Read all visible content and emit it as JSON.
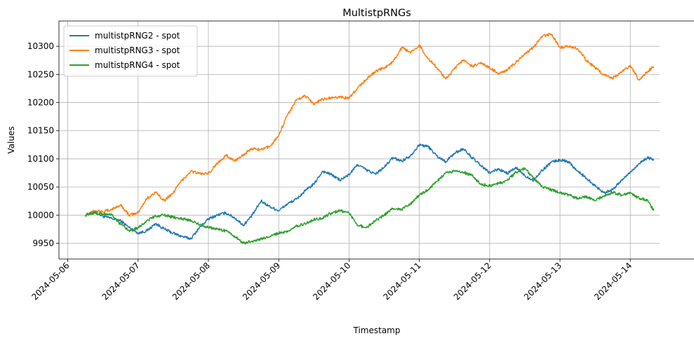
{
  "chart_data": {
    "type": "line",
    "title": "MultistpRNGs",
    "xlabel": "Timestamp",
    "ylabel": "Values",
    "x_ticks": [
      "2024-05-06",
      "2024-05-07",
      "2024-05-08",
      "2024-05-09",
      "2024-05-10",
      "2024-05-11",
      "2024-05-12",
      "2024-05-13",
      "2024-05-14"
    ],
    "y_ticks": [
      9950,
      10000,
      10050,
      10100,
      10150,
      10200,
      10250,
      10300
    ],
    "xlim": [
      "2024-05-05 21:00",
      "2024-05-14 10:00"
    ],
    "ylim": [
      9922,
      10345
    ],
    "grid": true,
    "legend_position": "top-left",
    "series": [
      {
        "name": "multistpRNG2 - spot",
        "color": "#1f77b4",
        "points": [
          [
            "2024-05-06 06:00",
            10000
          ],
          [
            "2024-05-06 09:00",
            10006
          ],
          [
            "2024-05-06 12:00",
            9998
          ],
          [
            "2024-05-06 15:00",
            9994
          ],
          [
            "2024-05-06 18:00",
            9990
          ],
          [
            "2024-05-06 21:00",
            9978
          ],
          [
            "2024-05-07 00:00",
            9968
          ],
          [
            "2024-05-07 03:00",
            9972
          ],
          [
            "2024-05-07 06:00",
            9985
          ],
          [
            "2024-05-07 09:00",
            9975
          ],
          [
            "2024-05-07 12:00",
            9968
          ],
          [
            "2024-05-07 15:00",
            9962
          ],
          [
            "2024-05-07 18:00",
            9958
          ],
          [
            "2024-05-07 21:00",
            9978
          ],
          [
            "2024-05-08 00:00",
            9993
          ],
          [
            "2024-05-08 03:00",
            10000
          ],
          [
            "2024-05-08 06:00",
            10004
          ],
          [
            "2024-05-08 09:00",
            9995
          ],
          [
            "2024-05-08 12:00",
            9982
          ],
          [
            "2024-05-08 15:00",
            10000
          ],
          [
            "2024-05-08 18:00",
            10025
          ],
          [
            "2024-05-08 21:00",
            10015
          ],
          [
            "2024-05-09 00:00",
            10008
          ],
          [
            "2024-05-09 03:00",
            10020
          ],
          [
            "2024-05-09 06:00",
            10028
          ],
          [
            "2024-05-09 09:00",
            10043
          ],
          [
            "2024-05-09 12:00",
            10055
          ],
          [
            "2024-05-09 15:00",
            10078
          ],
          [
            "2024-05-09 18:00",
            10072
          ],
          [
            "2024-05-09 21:00",
            10062
          ],
          [
            "2024-05-10 00:00",
            10072
          ],
          [
            "2024-05-10 03:00",
            10090
          ],
          [
            "2024-05-10 06:00",
            10080
          ],
          [
            "2024-05-10 09:00",
            10073
          ],
          [
            "2024-05-10 12:00",
            10085
          ],
          [
            "2024-05-10 15:00",
            10102
          ],
          [
            "2024-05-10 18:00",
            10096
          ],
          [
            "2024-05-10 21:00",
            10106
          ],
          [
            "2024-05-11 00:00",
            10125
          ],
          [
            "2024-05-11 03:00",
            10122
          ],
          [
            "2024-05-11 06:00",
            10105
          ],
          [
            "2024-05-11 09:00",
            10095
          ],
          [
            "2024-05-11 12:00",
            10110
          ],
          [
            "2024-05-11 15:00",
            10118
          ],
          [
            "2024-05-11 18:00",
            10102
          ],
          [
            "2024-05-11 21:00",
            10088
          ],
          [
            "2024-05-12 00:00",
            10075
          ],
          [
            "2024-05-12 03:00",
            10082
          ],
          [
            "2024-05-12 06:00",
            10074
          ],
          [
            "2024-05-12 09:00",
            10084
          ],
          [
            "2024-05-12 12:00",
            10070
          ],
          [
            "2024-05-12 15:00",
            10062
          ],
          [
            "2024-05-12 18:00",
            10080
          ],
          [
            "2024-05-12 21:00",
            10094
          ],
          [
            "2024-05-13 00:00",
            10098
          ],
          [
            "2024-05-13 03:00",
            10095
          ],
          [
            "2024-05-13 06:00",
            10078
          ],
          [
            "2024-05-13 09:00",
            10066
          ],
          [
            "2024-05-13 12:00",
            10052
          ],
          [
            "2024-05-13 15:00",
            10040
          ],
          [
            "2024-05-13 18:00",
            10045
          ],
          [
            "2024-05-13 21:00",
            10062
          ],
          [
            "2024-05-14 00:00",
            10076
          ],
          [
            "2024-05-14 03:00",
            10092
          ],
          [
            "2024-05-14 06:00",
            10102
          ],
          [
            "2024-05-14 08:00",
            10098
          ]
        ]
      },
      {
        "name": "multistpRNG3 - spot",
        "color": "#ff7f0e",
        "points": [
          [
            "2024-05-06 06:00",
            10000
          ],
          [
            "2024-05-06 09:00",
            10008
          ],
          [
            "2024-05-06 12:00",
            10006
          ],
          [
            "2024-05-06 15:00",
            10010
          ],
          [
            "2024-05-06 18:00",
            10018
          ],
          [
            "2024-05-06 21:00",
            10000
          ],
          [
            "2024-05-07 00:00",
            10004
          ],
          [
            "2024-05-07 03:00",
            10030
          ],
          [
            "2024-05-07 06:00",
            10040
          ],
          [
            "2024-05-07 09:00",
            10026
          ],
          [
            "2024-05-07 12:00",
            10040
          ],
          [
            "2024-05-07 15:00",
            10062
          ],
          [
            "2024-05-07 18:00",
            10078
          ],
          [
            "2024-05-07 21:00",
            10074
          ],
          [
            "2024-05-08 00:00",
            10073
          ],
          [
            "2024-05-08 03:00",
            10092
          ],
          [
            "2024-05-08 06:00",
            10106
          ],
          [
            "2024-05-08 09:00",
            10096
          ],
          [
            "2024-05-08 12:00",
            10108
          ],
          [
            "2024-05-08 15:00",
            10118
          ],
          [
            "2024-05-08 18:00",
            10116
          ],
          [
            "2024-05-08 21:00",
            10122
          ],
          [
            "2024-05-09 00:00",
            10142
          ],
          [
            "2024-05-09 03:00",
            10178
          ],
          [
            "2024-05-09 06:00",
            10204
          ],
          [
            "2024-05-09 09:00",
            10212
          ],
          [
            "2024-05-09 12:00",
            10198
          ],
          [
            "2024-05-09 15:00",
            10206
          ],
          [
            "2024-05-09 18:00",
            10208
          ],
          [
            "2024-05-09 21:00",
            10210
          ],
          [
            "2024-05-10 00:00",
            10208
          ],
          [
            "2024-05-10 03:00",
            10226
          ],
          [
            "2024-05-10 06:00",
            10242
          ],
          [
            "2024-05-10 09:00",
            10255
          ],
          [
            "2024-05-10 12:00",
            10262
          ],
          [
            "2024-05-10 15:00",
            10272
          ],
          [
            "2024-05-10 18:00",
            10298
          ],
          [
            "2024-05-10 21:00",
            10288
          ],
          [
            "2024-05-11 00:00",
            10302
          ],
          [
            "2024-05-11 03:00",
            10278
          ],
          [
            "2024-05-11 06:00",
            10262
          ],
          [
            "2024-05-11 09:00",
            10242
          ],
          [
            "2024-05-11 12:00",
            10260
          ],
          [
            "2024-05-11 15:00",
            10276
          ],
          [
            "2024-05-11 18:00",
            10264
          ],
          [
            "2024-05-11 21:00",
            10270
          ],
          [
            "2024-05-12 00:00",
            10262
          ],
          [
            "2024-05-12 03:00",
            10252
          ],
          [
            "2024-05-12 06:00",
            10258
          ],
          [
            "2024-05-12 09:00",
            10272
          ],
          [
            "2024-05-12 12:00",
            10286
          ],
          [
            "2024-05-12 15:00",
            10298
          ],
          [
            "2024-05-12 18:00",
            10318
          ],
          [
            "2024-05-12 21:00",
            10322
          ],
          [
            "2024-05-13 00:00",
            10298
          ],
          [
            "2024-05-13 03:00",
            10300
          ],
          [
            "2024-05-13 06:00",
            10296
          ],
          [
            "2024-05-13 09:00",
            10275
          ],
          [
            "2024-05-13 12:00",
            10262
          ],
          [
            "2024-05-13 15:00",
            10250
          ],
          [
            "2024-05-13 18:00",
            10244
          ],
          [
            "2024-05-13 21:00",
            10254
          ],
          [
            "2024-05-14 00:00",
            10266
          ],
          [
            "2024-05-14 03:00",
            10240
          ],
          [
            "2024-05-14 06:00",
            10256
          ],
          [
            "2024-05-14 08:00",
            10264
          ]
        ]
      },
      {
        "name": "multistpRNG4 - spot",
        "color": "#2ca02c",
        "points": [
          [
            "2024-05-06 06:00",
            10000
          ],
          [
            "2024-05-06 09:00",
            10004
          ],
          [
            "2024-05-06 12:00",
            10002
          ],
          [
            "2024-05-06 15:00",
            10000
          ],
          [
            "2024-05-06 18:00",
            9984
          ],
          [
            "2024-05-06 21:00",
            9972
          ],
          [
            "2024-05-07 00:00",
            9978
          ],
          [
            "2024-05-07 03:00",
            9990
          ],
          [
            "2024-05-07 06:00",
            9998
          ],
          [
            "2024-05-07 09:00",
            10000
          ],
          [
            "2024-05-07 12:00",
            9996
          ],
          [
            "2024-05-07 15:00",
            9994
          ],
          [
            "2024-05-07 18:00",
            9990
          ],
          [
            "2024-05-07 21:00",
            9983
          ],
          [
            "2024-05-08 00:00",
            9978
          ],
          [
            "2024-05-08 03:00",
            9975
          ],
          [
            "2024-05-08 06:00",
            9972
          ],
          [
            "2024-05-08 09:00",
            9962
          ],
          [
            "2024-05-08 12:00",
            9950
          ],
          [
            "2024-05-08 15:00",
            9954
          ],
          [
            "2024-05-08 18:00",
            9957
          ],
          [
            "2024-05-08 21:00",
            9962
          ],
          [
            "2024-05-09 00:00",
            9968
          ],
          [
            "2024-05-09 03:00",
            9970
          ],
          [
            "2024-05-09 06:00",
            9980
          ],
          [
            "2024-05-09 09:00",
            9985
          ],
          [
            "2024-05-09 12:00",
            9992
          ],
          [
            "2024-05-09 15:00",
            9995
          ],
          [
            "2024-05-09 18:00",
            10004
          ],
          [
            "2024-05-09 21:00",
            10008
          ],
          [
            "2024-05-10 00:00",
            10004
          ],
          [
            "2024-05-10 03:00",
            9982
          ],
          [
            "2024-05-10 06:00",
            9978
          ],
          [
            "2024-05-10 09:00",
            9990
          ],
          [
            "2024-05-10 12:00",
            10000
          ],
          [
            "2024-05-10 15:00",
            10012
          ],
          [
            "2024-05-10 18:00",
            10010
          ],
          [
            "2024-05-10 21:00",
            10020
          ],
          [
            "2024-05-11 00:00",
            10035
          ],
          [
            "2024-05-11 03:00",
            10045
          ],
          [
            "2024-05-11 06:00",
            10060
          ],
          [
            "2024-05-11 09:00",
            10075
          ],
          [
            "2024-05-11 12:00",
            10078
          ],
          [
            "2024-05-11 15:00",
            10076
          ],
          [
            "2024-05-11 18:00",
            10070
          ],
          [
            "2024-05-11 21:00",
            10055
          ],
          [
            "2024-05-12 00:00",
            10052
          ],
          [
            "2024-05-12 03:00",
            10056
          ],
          [
            "2024-05-12 06:00",
            10062
          ],
          [
            "2024-05-12 09:00",
            10076
          ],
          [
            "2024-05-12 12:00",
            10084
          ],
          [
            "2024-05-12 15:00",
            10065
          ],
          [
            "2024-05-12 18:00",
            10050
          ],
          [
            "2024-05-12 21:00",
            10045
          ],
          [
            "2024-05-13 00:00",
            10040
          ],
          [
            "2024-05-13 03:00",
            10036
          ],
          [
            "2024-05-13 06:00",
            10030
          ],
          [
            "2024-05-13 09:00",
            10033
          ],
          [
            "2024-05-13 12:00",
            10026
          ],
          [
            "2024-05-13 15:00",
            10034
          ],
          [
            "2024-05-13 18:00",
            10040
          ],
          [
            "2024-05-13 21:00",
            10036
          ],
          [
            "2024-05-14 00:00",
            10040
          ],
          [
            "2024-05-14 03:00",
            10030
          ],
          [
            "2024-05-14 06:00",
            10026
          ],
          [
            "2024-05-14 08:00",
            10008
          ]
        ]
      }
    ]
  }
}
